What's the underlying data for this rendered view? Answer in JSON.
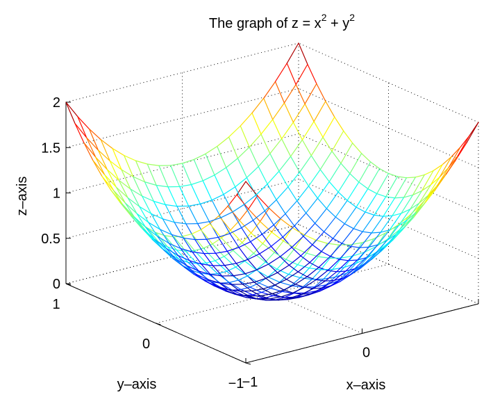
{
  "chart_data": {
    "type": "surface",
    "function": "z = x^2 + y^2",
    "title": "The graph of z = x",
    "title_sup1": "2",
    "title_mid": " + y",
    "title_sup2": "2",
    "xlabel": "x–axis",
    "ylabel": "y–axis",
    "zlabel": "z–axis",
    "xlim": [
      -1,
      1
    ],
    "ylim": [
      -1,
      1
    ],
    "zlim": [
      0,
      2
    ],
    "grid_points": 21,
    "x_ticks": [
      {
        "value": -1,
        "label": "−1"
      },
      {
        "value": 0,
        "label": "0"
      },
      {
        "value": 1,
        "label": ""
      }
    ],
    "y_ticks": [
      {
        "value": -1,
        "label": "−1"
      },
      {
        "value": 0,
        "label": "0"
      },
      {
        "value": 1,
        "label": "1"
      }
    ],
    "z_ticks": [
      {
        "value": 0,
        "label": "0"
      },
      {
        "value": 0.5,
        "label": "0.5"
      },
      {
        "value": 1,
        "label": "1"
      },
      {
        "value": 1.5,
        "label": "1.5"
      },
      {
        "value": 2,
        "label": "2"
      }
    ],
    "grid": true,
    "colormap": "jet"
  }
}
